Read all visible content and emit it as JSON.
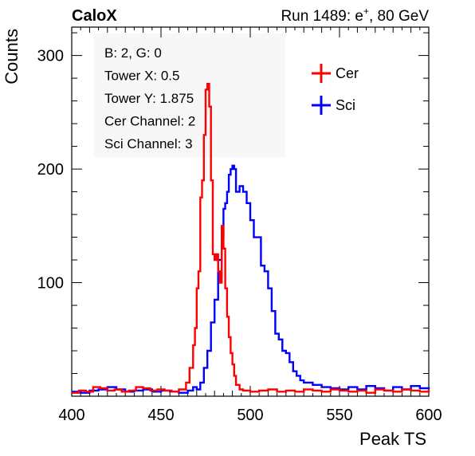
{
  "header": {
    "left_title": "CaloX",
    "right_title_prefix": "Run 1489: e",
    "right_title_sup": "+",
    "right_title_suffix": ", 80 GeV"
  },
  "info_box": {
    "lines": [
      "B: 2, G: 0",
      "Tower X: 0.5",
      "Tower Y: 1.875",
      "Cer Channel: 2",
      "Sci Channel: 3"
    ]
  },
  "colors": {
    "cer": "#ff0000",
    "sci": "#0000ff"
  },
  "chart_data": {
    "type": "line",
    "title": "",
    "xlabel": "Peak TS",
    "ylabel": "Counts",
    "xlim": [
      400,
      600
    ],
    "ylim": [
      0,
      325
    ],
    "x_ticks": [
      400,
      450,
      500,
      550,
      600
    ],
    "y_ticks": [
      100,
      200,
      300
    ],
    "grid": false,
    "legend_position": "top-right",
    "series": [
      {
        "name": "Cer",
        "color": "#ff0000",
        "x": [
          400,
          404,
          408,
          412,
          416,
          420,
          424,
          428,
          432,
          436,
          440,
          444,
          448,
          452,
          456,
          460,
          464,
          466,
          468,
          469,
          470,
          471,
          472,
          473,
          474,
          475,
          476,
          477,
          478,
          479,
          480,
          481,
          482,
          483,
          484,
          485,
          486,
          487,
          488,
          489,
          490,
          491,
          492,
          494,
          496,
          500,
          505,
          510,
          515,
          520,
          525,
          530,
          535,
          540,
          545,
          550,
          555,
          560,
          565,
          570,
          575,
          580,
          585,
          590,
          595,
          600
        ],
        "y": [
          3,
          5,
          4,
          8,
          7,
          5,
          6,
          4,
          5,
          8,
          7,
          5,
          6,
          5,
          4,
          6,
          12,
          25,
          45,
          60,
          95,
          110,
          175,
          190,
          230,
          270,
          275,
          255,
          190,
          125,
          120,
          125,
          110,
          100,
          150,
          130,
          95,
          70,
          52,
          38,
          28,
          18,
          10,
          6,
          5,
          4,
          5,
          6,
          4,
          5,
          4,
          6,
          5,
          4,
          6,
          5,
          4,
          5,
          3,
          6,
          5,
          4,
          6,
          5,
          4,
          6
        ]
      },
      {
        "name": "Sci",
        "color": "#0000ff",
        "x": [
          400,
          405,
          410,
          415,
          420,
          425,
          430,
          435,
          440,
          445,
          450,
          455,
          460,
          465,
          468,
          470,
          472,
          474,
          476,
          478,
          480,
          482,
          484,
          485,
          486,
          487,
          488,
          489,
          490,
          491,
          492,
          494,
          496,
          498,
          500,
          502,
          504,
          506,
          508,
          510,
          512,
          514,
          516,
          518,
          520,
          522,
          524,
          526,
          528,
          530,
          535,
          540,
          545,
          550,
          555,
          560,
          565,
          570,
          575,
          580,
          585,
          590,
          595,
          600
        ],
        "y": [
          4,
          3,
          5,
          6,
          8,
          6,
          4,
          5,
          6,
          4,
          5,
          4,
          3,
          5,
          8,
          6,
          12,
          25,
          40,
          65,
          85,
          120,
          140,
          165,
          170,
          180,
          195,
          200,
          203,
          200,
          180,
          185,
          180,
          170,
          155,
          140,
          140,
          115,
          110,
          95,
          75,
          55,
          50,
          40,
          38,
          30,
          22,
          18,
          14,
          12,
          10,
          8,
          7,
          6,
          8,
          6,
          9,
          7,
          5,
          8,
          6,
          9,
          7,
          8
        ]
      }
    ]
  }
}
